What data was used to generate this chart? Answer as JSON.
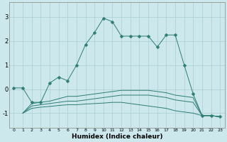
{
  "xlabel": "Humidex (Indice chaleur)",
  "ylabel": "",
  "xlim": [
    -0.5,
    23.5
  ],
  "ylim": [
    -1.6,
    3.6
  ],
  "background_color": "#cce8ec",
  "grid_color": "#aacdd4",
  "line_color": "#2e7d74",
  "line1_x": [
    0,
    1,
    2,
    3,
    4,
    5,
    6,
    7,
    8,
    9,
    10,
    11,
    12,
    13,
    14,
    15,
    16,
    17,
    18,
    19,
    20,
    21,
    22,
    23
  ],
  "line1_y": [
    0.05,
    0.05,
    -0.55,
    -0.55,
    0.25,
    0.5,
    0.35,
    1.0,
    1.85,
    2.35,
    2.95,
    2.8,
    2.2,
    2.2,
    2.2,
    2.2,
    1.75,
    2.25,
    2.25,
    1.0,
    -0.2,
    -1.1,
    -1.1,
    -1.15
  ],
  "line2_x": [
    1,
    2,
    3,
    4,
    5,
    6,
    7,
    8,
    9,
    10,
    11,
    12,
    13,
    14,
    15,
    16,
    17,
    18,
    19,
    20,
    21,
    22,
    23
  ],
  "line2_y": [
    -1.0,
    -0.6,
    -0.55,
    -0.5,
    -0.4,
    -0.3,
    -0.3,
    -0.25,
    -0.2,
    -0.15,
    -0.1,
    -0.05,
    -0.05,
    -0.05,
    -0.05,
    -0.1,
    -0.15,
    -0.25,
    -0.3,
    -0.35,
    -1.1,
    -1.1,
    -1.15
  ],
  "line3_x": [
    1,
    2,
    3,
    4,
    5,
    6,
    7,
    8,
    9,
    10,
    11,
    12,
    13,
    14,
    15,
    16,
    17,
    18,
    19,
    20,
    21,
    22,
    23
  ],
  "line3_y": [
    -1.0,
    -0.7,
    -0.65,
    -0.6,
    -0.55,
    -0.5,
    -0.5,
    -0.45,
    -0.4,
    -0.35,
    -0.3,
    -0.25,
    -0.25,
    -0.25,
    -0.25,
    -0.3,
    -0.35,
    -0.45,
    -0.5,
    -0.55,
    -1.1,
    -1.1,
    -1.15
  ],
  "line4_x": [
    1,
    2,
    3,
    4,
    5,
    6,
    7,
    8,
    9,
    10,
    11,
    12,
    13,
    14,
    15,
    16,
    17,
    18,
    19,
    20,
    21,
    22,
    23
  ],
  "line4_y": [
    -1.0,
    -0.8,
    -0.75,
    -0.72,
    -0.68,
    -0.65,
    -0.65,
    -0.62,
    -0.6,
    -0.58,
    -0.55,
    -0.55,
    -0.6,
    -0.65,
    -0.7,
    -0.75,
    -0.8,
    -0.9,
    -0.95,
    -1.0,
    -1.1,
    -1.1,
    -1.15
  ],
  "xticks": [
    0,
    1,
    2,
    3,
    4,
    5,
    6,
    7,
    8,
    9,
    10,
    11,
    12,
    13,
    14,
    15,
    16,
    17,
    18,
    19,
    20,
    21,
    22,
    23
  ],
  "yticks": [
    -1,
    0,
    1,
    2,
    3
  ],
  "markersize": 2.5
}
